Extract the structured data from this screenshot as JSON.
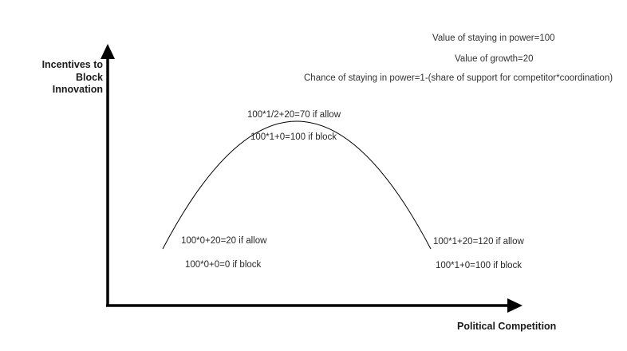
{
  "axes": {
    "y_label_line1": "Incentives to",
    "y_label_line2": "Block Innovation",
    "x_label": "Political Competition"
  },
  "assumptions": [
    "Value of staying in power=100",
    "Value of growth=20",
    "Chance of staying in power=1-(share of support for competitor*coordination)"
  ],
  "points": {
    "left": {
      "allow": "100*0+20=20 if allow",
      "block": "100*0+0=0 if block"
    },
    "peak": {
      "allow": "100*1/2+20=70 if allow",
      "block": "100*1+0=100 if block"
    },
    "right": {
      "allow": "100*1+20=120 if allow",
      "block": "100*1+0=100 if block"
    }
  },
  "colors": {
    "axis": "#000000",
    "curve": "#000000",
    "text": "#2a2a2a"
  }
}
